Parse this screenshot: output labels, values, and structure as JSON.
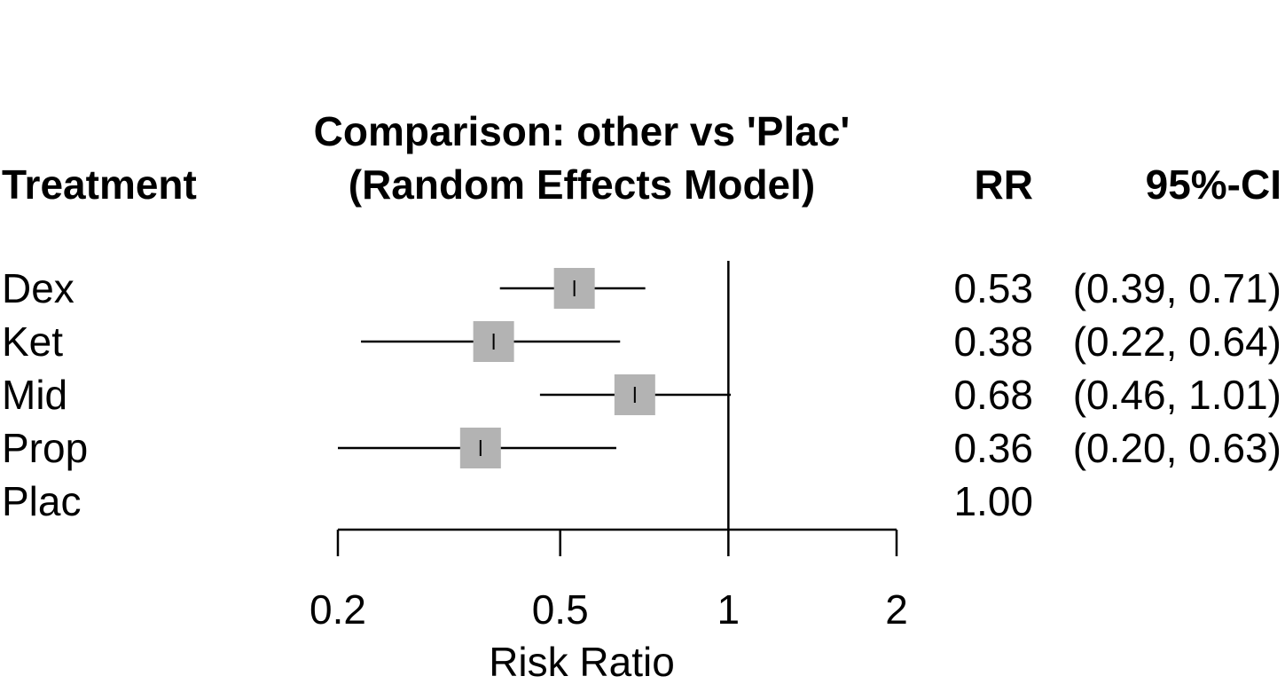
{
  "headers": {
    "treatment": "Treatment",
    "title_line1": "Comparison: other vs 'Plac'",
    "title_line2": "(Random Effects Model)",
    "rr": "RR",
    "ci": "95%-CI"
  },
  "chart_data": {
    "type": "forest",
    "scale": "log",
    "xlabel": "Risk Ratio",
    "xticks": [
      0.2,
      0.5,
      1,
      2
    ],
    "xtick_labels": [
      "0.2",
      "0.5",
      "1",
      "2"
    ],
    "xlim": [
      0.2,
      2
    ],
    "reference_line": 1,
    "marker_color": "#b3b3b3",
    "rows": [
      {
        "treatment": "Dex",
        "rr": 0.53,
        "lower": 0.39,
        "upper": 0.71,
        "rr_text": "0.53",
        "ci_text": "(0.39, 0.71)"
      },
      {
        "treatment": "Ket",
        "rr": 0.38,
        "lower": 0.22,
        "upper": 0.64,
        "rr_text": "0.38",
        "ci_text": "(0.22, 0.64)"
      },
      {
        "treatment": "Mid",
        "rr": 0.68,
        "lower": 0.46,
        "upper": 1.01,
        "rr_text": "0.68",
        "ci_text": "(0.46, 1.01)"
      },
      {
        "treatment": "Prop",
        "rr": 0.36,
        "lower": 0.2,
        "upper": 0.63,
        "rr_text": "0.36",
        "ci_text": "(0.20, 0.63)"
      },
      {
        "treatment": "Plac",
        "rr": 1.0,
        "lower": null,
        "upper": null,
        "rr_text": "1.00",
        "ci_text": ""
      }
    ]
  }
}
